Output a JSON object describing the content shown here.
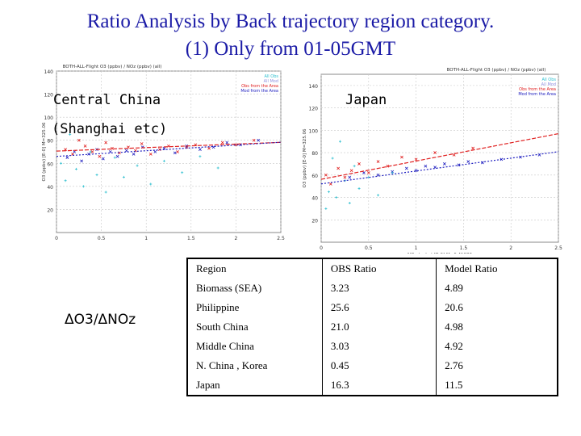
{
  "title_line1": "Ratio Analysis by Back trajectory region category.",
  "title_line2": "(1) Only from 01-05GMT",
  "labels": {
    "central_china": "Central China",
    "shanghai": "(Shanghai etc)",
    "japan": "Japan",
    "ratio": "ΔO3/ΔNOz"
  },
  "table": {
    "headers": [
      "Region",
      "OBS Ratio",
      "Model Ratio"
    ],
    "rows": [
      [
        "Biomass (SEA)",
        "3.23",
        "4.89"
      ],
      [
        "Philippine",
        "25.6",
        "20.6"
      ],
      [
        "South China",
        "21.0",
        "4.98"
      ],
      [
        "Middle China",
        "3.03",
        "4.92"
      ],
      [
        "N. China , Korea",
        "0.45",
        "2.76"
      ],
      [
        "Japan",
        "16.3",
        "11.5"
      ]
    ]
  },
  "colors": {
    "title": "#1a1aa6",
    "obs": "#e02020",
    "model": "#2020c0",
    "other": "#30c0d0",
    "grid": "#c8c8c8"
  },
  "chart_data": [
    {
      "type": "scatter",
      "title": "BOTH-ALL-Flight O3 (ppbv) / NOz (ppbv) (all)",
      "xlabel": "NOz (ppbv) [E-0] M=3.41986",
      "ylabel": "O3 (ppbv) [E-0] M=325.06",
      "xlim": [
        0,
        2.5
      ],
      "ylim": [
        0,
        140
      ],
      "x_ticks": [
        "0",
        "0.5",
        "1",
        "1.5",
        "2",
        "2.5"
      ],
      "y_ticks": [
        "20",
        "40",
        "60",
        "80",
        "100",
        "120",
        "140"
      ],
      "legend": [
        "All Obs",
        "All Mod",
        "Obs from the Area",
        "Mod from the Area"
      ],
      "fit_lines": [
        {
          "name": "Obs fit",
          "intercept": 70.6,
          "slope": 3.03
        },
        {
          "name": "Model fit",
          "intercept": 66.0,
          "slope": 4.92
        }
      ],
      "series": [
        {
          "name": "Obs from the Area",
          "x": [
            0.1,
            0.18,
            0.25,
            0.32,
            0.4,
            0.48,
            0.55,
            0.62,
            0.7,
            0.8,
            0.88,
            0.95,
            1.05,
            1.15,
            1.25,
            1.35,
            1.45,
            1.55,
            1.7,
            1.85,
            2.0,
            2.2
          ],
          "y": [
            72,
            68,
            80,
            75,
            70,
            66,
            78,
            73,
            69,
            74,
            71,
            77,
            68,
            72,
            75,
            70,
            74,
            76,
            73,
            78,
            76,
            80
          ]
        },
        {
          "name": "Mod from the Area",
          "x": [
            0.12,
            0.2,
            0.28,
            0.36,
            0.45,
            0.52,
            0.6,
            0.68,
            0.78,
            0.86,
            0.96,
            1.1,
            1.2,
            1.32,
            1.45,
            1.6,
            1.75,
            1.9,
            2.05,
            2.25
          ],
          "y": [
            65,
            70,
            62,
            68,
            72,
            64,
            70,
            66,
            71,
            68,
            74,
            70,
            73,
            69,
            75,
            72,
            74,
            78,
            76,
            80
          ]
        },
        {
          "name": "All Obs",
          "x": [
            0.05,
            0.1,
            0.15,
            0.22,
            0.3,
            0.38,
            0.45,
            0.55,
            0.65,
            0.75,
            0.9,
            1.05,
            1.2,
            1.4,
            1.6,
            1.8
          ],
          "y": [
            60,
            45,
            85,
            55,
            40,
            70,
            50,
            35,
            65,
            48,
            58,
            42,
            62,
            52,
            66,
            56
          ]
        }
      ]
    },
    {
      "type": "scatter",
      "title": "BOTH-ALL-Flight O3 (ppbv) / NOz (ppbv) (all)",
      "xlabel": "NOz (ppbv) [E-0] M=6.41986",
      "ylabel": "O3 (ppbv) [E-0] M=325.06",
      "xlim": [
        0,
        2.5
      ],
      "ylim": [
        0,
        150
      ],
      "x_ticks": [
        "0",
        "0.5",
        "1",
        "1.5",
        "2",
        "2.5"
      ],
      "y_ticks": [
        "20",
        "40",
        "60",
        "80",
        "100",
        "120",
        "140"
      ],
      "legend": [
        "All Obs",
        "All Mod",
        "Obs from the Area",
        "Mod from the Area"
      ],
      "fit_lines": [
        {
          "name": "Obs fit",
          "intercept": 56.2,
          "slope": 16.3
        },
        {
          "name": "Model fit",
          "intercept": 52.1,
          "slope": 11.5
        }
      ],
      "series": [
        {
          "name": "Obs from the Area",
          "x": [
            0.05,
            0.1,
            0.18,
            0.25,
            0.32,
            0.4,
            0.5,
            0.6,
            0.7,
            0.85,
            1.0,
            1.2,
            1.4,
            1.6
          ],
          "y": [
            60,
            52,
            66,
            58,
            64,
            70,
            62,
            72,
            68,
            76,
            74,
            80,
            78,
            84
          ]
        },
        {
          "name": "Mod from the Area",
          "x": [
            0.3,
            0.45,
            0.6,
            0.75,
            0.9,
            1.0,
            1.1,
            1.2,
            1.3,
            1.45,
            1.55,
            1.7,
            1.9,
            2.1,
            2.3
          ],
          "y": [
            58,
            62,
            60,
            63,
            66,
            64,
            68,
            67,
            70,
            69,
            72,
            71,
            74,
            76,
            78
          ]
        },
        {
          "name": "All Obs",
          "x": [
            0.05,
            0.08,
            0.12,
            0.16,
            0.2,
            0.25,
            0.3,
            0.35,
            0.4,
            0.5,
            0.6,
            0.75
          ],
          "y": [
            30,
            45,
            75,
            40,
            90,
            55,
            35,
            68,
            48,
            58,
            42,
            62
          ]
        }
      ]
    }
  ]
}
